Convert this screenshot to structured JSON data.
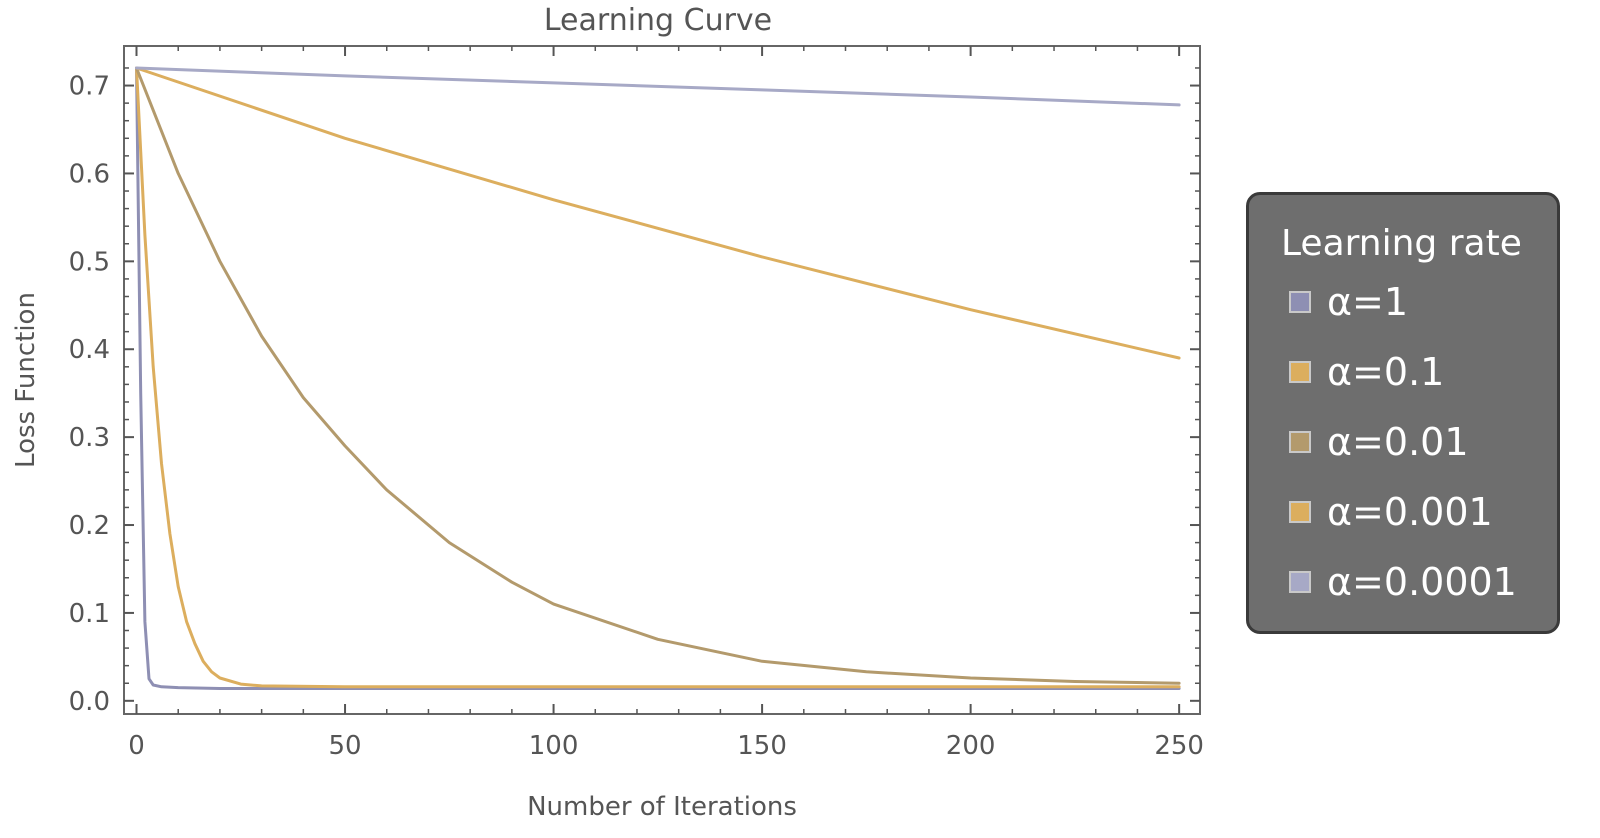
{
  "chart_data": {
    "type": "line",
    "title": "Learning Curve",
    "xlabel": "Number of Iterations",
    "ylabel": "Loss Function",
    "xlim": [
      -3,
      255
    ],
    "ylim": [
      -0.015,
      0.745
    ],
    "x_ticks": [
      0,
      50,
      100,
      150,
      200,
      250
    ],
    "y_ticks": [
      0.0,
      0.1,
      0.2,
      0.3,
      0.4,
      0.5,
      0.6,
      0.7
    ],
    "y_tick_labels": [
      "0.0",
      "0.1",
      "0.2",
      "0.3",
      "0.4",
      "0.5",
      "0.6",
      "0.7"
    ],
    "legend": {
      "title": "Learning rate",
      "position": "right"
    },
    "series": [
      {
        "name": "α=1",
        "color": "#8e8fb3",
        "x": [
          0,
          1,
          2,
          3,
          4,
          6,
          10,
          20,
          50,
          100,
          150,
          200,
          250
        ],
        "y": [
          0.72,
          0.35,
          0.09,
          0.025,
          0.018,
          0.016,
          0.015,
          0.014,
          0.014,
          0.014,
          0.014,
          0.014,
          0.014
        ]
      },
      {
        "name": "α=0.1",
        "color": "#dcae5e",
        "x": [
          0,
          2,
          4,
          6,
          8,
          10,
          12,
          14,
          16,
          18,
          20,
          25,
          30,
          50,
          100,
          150,
          200,
          250
        ],
        "y": [
          0.72,
          0.53,
          0.38,
          0.27,
          0.19,
          0.13,
          0.09,
          0.065,
          0.045,
          0.033,
          0.026,
          0.019,
          0.017,
          0.016,
          0.016,
          0.016,
          0.016,
          0.016
        ]
      },
      {
        "name": "α=0.01",
        "color": "#b39a6c",
        "x": [
          0,
          10,
          20,
          30,
          40,
          50,
          60,
          75,
          90,
          100,
          125,
          150,
          175,
          200,
          225,
          250
        ],
        "y": [
          0.72,
          0.6,
          0.5,
          0.415,
          0.345,
          0.29,
          0.24,
          0.18,
          0.135,
          0.11,
          0.07,
          0.045,
          0.033,
          0.026,
          0.022,
          0.02
        ]
      },
      {
        "name": "α=0.001",
        "color": "#dcae5e",
        "x": [
          0,
          50,
          100,
          150,
          200,
          250
        ],
        "y": [
          0.72,
          0.64,
          0.57,
          0.505,
          0.445,
          0.39
        ]
      },
      {
        "name": "α=0.0001",
        "color": "#a7a9c6",
        "x": [
          0,
          50,
          100,
          150,
          200,
          250
        ],
        "y": [
          0.72,
          0.711,
          0.703,
          0.695,
          0.687,
          0.678
        ]
      }
    ]
  }
}
